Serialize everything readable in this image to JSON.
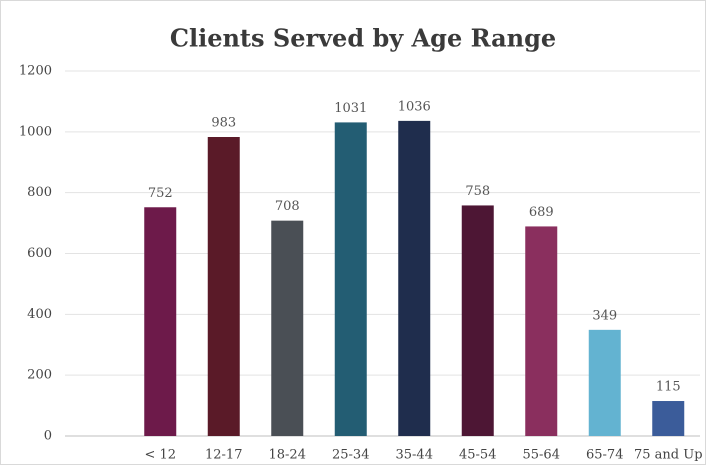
{
  "chart_data": {
    "type": "bar",
    "title": "Clients Served by Age Range",
    "categories": [
      null,
      "< 12",
      "12-17",
      "18-24",
      "25-34",
      "35-44",
      "45-54",
      "55-64",
      "65-74",
      "75 and Up"
    ],
    "values": [
      null,
      752,
      983,
      708,
      1031,
      1036,
      758,
      689,
      349,
      115
    ],
    "colors": [
      null,
      "#6d1a4a",
      "#5a1a28",
      "#4a4f55",
      "#235d73",
      "#1f2d4d",
      "#4d1634",
      "#8a2f5e",
      "#63b3d1",
      "#3b5c9a"
    ],
    "ylim": [
      0,
      1200
    ],
    "yticks": [
      0,
      200,
      400,
      600,
      800,
      1000,
      1200
    ],
    "grid": true
  }
}
